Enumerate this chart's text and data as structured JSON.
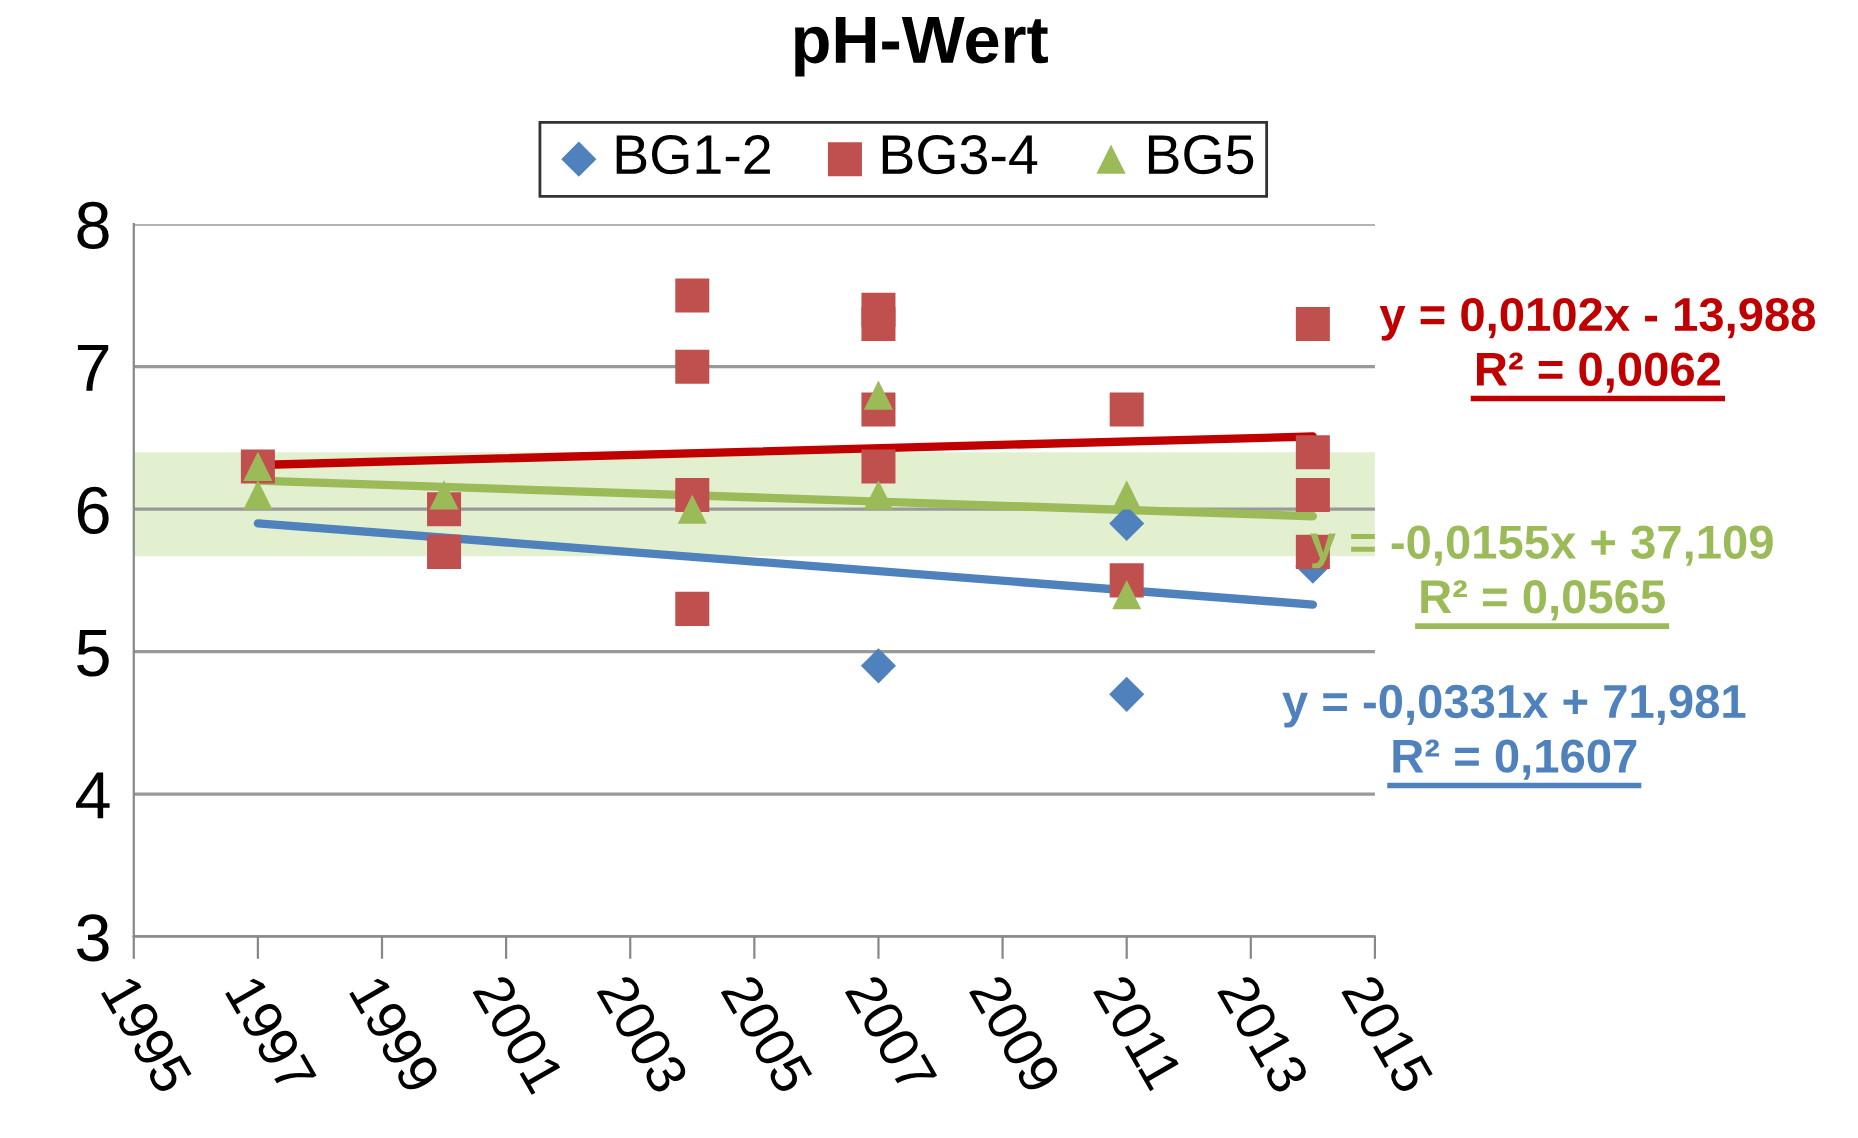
{
  "chart_data": {
    "type": "scatter",
    "title": "pH-Wert",
    "xlim": [
      1995,
      2015
    ],
    "xticks": [
      1995,
      1997,
      1999,
      2001,
      2003,
      2005,
      2007,
      2009,
      2011,
      2013,
      2015
    ],
    "ylim": [
      3,
      8
    ],
    "yticks": [
      3,
      4,
      5,
      6,
      7,
      8
    ],
    "grid": "y",
    "legend": "top",
    "series": [
      {
        "name": "BG1-2",
        "color": "#4f81bd",
        "marker": "diamond",
        "x": [
          2007,
          2011,
          2011,
          2014
        ],
        "values": [
          4.9,
          4.7,
          5.9,
          5.6
        ]
      },
      {
        "name": "BG3-4",
        "color": "#c0504d",
        "marker": "square",
        "x": [
          1997,
          2000,
          2000,
          2004,
          2004,
          2004,
          2004,
          2007,
          2007,
          2007,
          2007,
          2011,
          2011,
          2014,
          2014,
          2014,
          2014
        ],
        "values": [
          6.3,
          5.7,
          6.0,
          7.5,
          7.0,
          6.1,
          5.3,
          7.4,
          7.3,
          6.7,
          6.3,
          6.7,
          5.5,
          7.3,
          6.4,
          6.1,
          5.7
        ]
      },
      {
        "name": "BG5",
        "color": "#9bbb59",
        "marker": "triangle",
        "x": [
          1997,
          1997,
          2000,
          2004,
          2007,
          2007,
          2011,
          2011
        ],
        "values": [
          6.3,
          6.1,
          6.1,
          6.0,
          6.8,
          6.1,
          6.1,
          5.4
        ]
      },
      {
        "type": "line",
        "color": "#4f81bd",
        "x": [
          1997,
          2014
        ],
        "values": [
          5.9,
          5.33
        ]
      },
      {
        "type": "line",
        "color": "#c00000",
        "x": [
          1997,
          2014
        ],
        "values": [
          6.31,
          6.51
        ]
      },
      {
        "type": "line",
        "color": "#9bbb59",
        "x": [
          1997,
          2014
        ],
        "values": [
          6.2,
          5.95
        ]
      }
    ],
    "bands": [
      {
        "axis": "y",
        "from": 5.67,
        "to": 6.4,
        "color": "#c6e0a0"
      }
    ],
    "annotations": [
      "y = -0,0331x + 71,981",
      "R² = 0,1607",
      "y = 0,0102x - 13,988",
      "R² = 0,0062",
      "y = -0,0155x + 37,109",
      "R² = 0,0565"
    ]
  }
}
